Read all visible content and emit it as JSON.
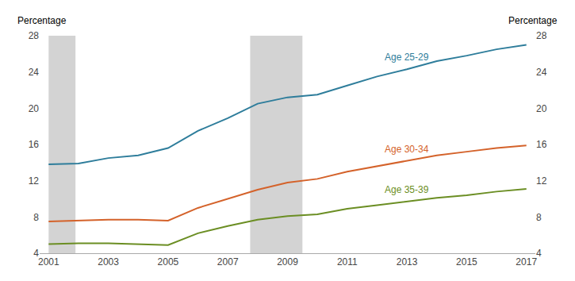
{
  "chart_data": {
    "type": "line",
    "x": [
      2001,
      2002,
      2003,
      2004,
      2005,
      2006,
      2007,
      2008,
      2009,
      2010,
      2011,
      2012,
      2013,
      2014,
      2015,
      2016,
      2017
    ],
    "series": [
      {
        "name": "Age 25-29",
        "color": "#2E7D9B",
        "values": [
          13.8,
          13.9,
          14.5,
          14.8,
          15.6,
          17.5,
          18.9,
          20.5,
          21.2,
          21.5,
          22.5,
          23.5,
          24.3,
          25.2,
          25.8,
          26.5,
          27.0
        ]
      },
      {
        "name": "Age 30-34",
        "color": "#D4622A",
        "values": [
          7.5,
          7.6,
          7.7,
          7.7,
          7.6,
          9.0,
          10.0,
          11.0,
          11.8,
          12.2,
          13.0,
          13.6,
          14.2,
          14.8,
          15.2,
          15.6,
          15.9
        ]
      },
      {
        "name": "Age 35-39",
        "color": "#6B8E23",
        "values": [
          5.0,
          5.1,
          5.1,
          5.0,
          4.9,
          6.2,
          7.0,
          7.7,
          8.1,
          8.3,
          8.9,
          9.3,
          9.7,
          10.1,
          10.4,
          10.8,
          11.1
        ]
      }
    ],
    "recessions": [
      {
        "start": 2001.0,
        "end": 2001.9,
        "color": "#D3D3D3"
      },
      {
        "start": 2007.75,
        "end": 2009.5,
        "color": "#D3D3D3"
      }
    ],
    "xlim": [
      2000.7,
      2017.3
    ],
    "xticks": [
      2001,
      2003,
      2005,
      2007,
      2009,
      2011,
      2013,
      2015,
      2017
    ],
    "ylim": [
      4,
      28
    ],
    "yticks": [
      4,
      8,
      12,
      16,
      20,
      24,
      28
    ],
    "y2lim": [
      4,
      28
    ],
    "y2ticks": [
      4,
      8,
      12,
      16,
      20,
      24,
      28
    ],
    "ylabel": "Percentage",
    "y2label": "Percentage",
    "grid": false,
    "legend": false
  }
}
